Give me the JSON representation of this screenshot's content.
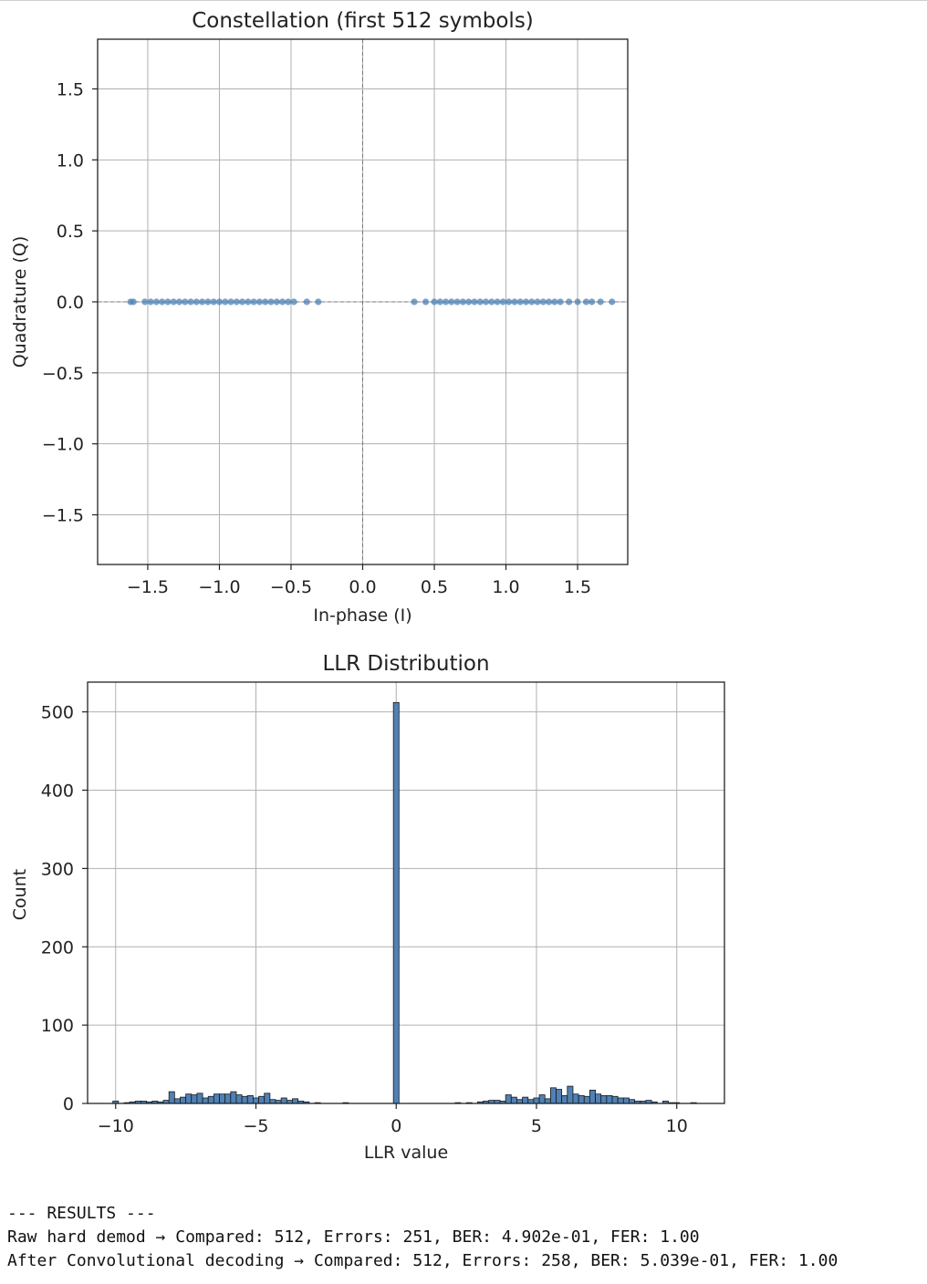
{
  "chart_data": [
    {
      "type": "scatter",
      "title": "Constellation (first 512 symbols)",
      "xlabel": "In-phase (I)",
      "ylabel": "Quadrature (Q)",
      "xlim": [
        -1.85,
        1.85
      ],
      "ylim": [
        -1.85,
        1.85
      ],
      "x_ticks": [
        -1.5,
        -1.0,
        -0.5,
        0.0,
        0.5,
        1.0,
        1.5
      ],
      "y_ticks": [
        -1.5,
        -1.0,
        -0.5,
        0.0,
        0.5,
        1.0,
        1.5
      ],
      "x_tick_labels": [
        "−1.5",
        "−1.0",
        "−0.5",
        "0.0",
        "0.5",
        "1.0",
        "1.5"
      ],
      "y_tick_labels": [
        "−1.5",
        "−1.0",
        "−0.5",
        "0.0",
        "0.5",
        "1.0",
        "1.5"
      ],
      "grid": true,
      "reference_lines": {
        "x": 0,
        "y": 0,
        "style": "dashed"
      },
      "marker_color": "#4f81b5",
      "points": [
        {
          "x": -1.62,
          "y": 0
        },
        {
          "x": -1.6,
          "y": 0
        },
        {
          "x": -1.52,
          "y": 0
        },
        {
          "x": -1.48,
          "y": 0
        },
        {
          "x": -1.44,
          "y": 0
        },
        {
          "x": -1.4,
          "y": 0
        },
        {
          "x": -1.36,
          "y": 0
        },
        {
          "x": -1.32,
          "y": 0
        },
        {
          "x": -1.28,
          "y": 0
        },
        {
          "x": -1.24,
          "y": 0
        },
        {
          "x": -1.2,
          "y": 0
        },
        {
          "x": -1.16,
          "y": 0
        },
        {
          "x": -1.12,
          "y": 0
        },
        {
          "x": -1.08,
          "y": 0
        },
        {
          "x": -1.04,
          "y": 0
        },
        {
          "x": -1.0,
          "y": 0
        },
        {
          "x": -0.96,
          "y": 0
        },
        {
          "x": -0.92,
          "y": 0
        },
        {
          "x": -0.88,
          "y": 0
        },
        {
          "x": -0.84,
          "y": 0
        },
        {
          "x": -0.8,
          "y": 0
        },
        {
          "x": -0.76,
          "y": 0
        },
        {
          "x": -0.72,
          "y": 0
        },
        {
          "x": -0.68,
          "y": 0
        },
        {
          "x": -0.64,
          "y": 0
        },
        {
          "x": -0.6,
          "y": 0
        },
        {
          "x": -0.56,
          "y": 0
        },
        {
          "x": -0.52,
          "y": 0
        },
        {
          "x": -0.48,
          "y": 0
        },
        {
          "x": -0.39,
          "y": 0
        },
        {
          "x": -0.31,
          "y": 0
        },
        {
          "x": 0.36,
          "y": 0
        },
        {
          "x": 0.44,
          "y": 0
        },
        {
          "x": 0.5,
          "y": 0
        },
        {
          "x": 0.54,
          "y": 0
        },
        {
          "x": 0.58,
          "y": 0
        },
        {
          "x": 0.62,
          "y": 0
        },
        {
          "x": 0.66,
          "y": 0
        },
        {
          "x": 0.7,
          "y": 0
        },
        {
          "x": 0.74,
          "y": 0
        },
        {
          "x": 0.78,
          "y": 0
        },
        {
          "x": 0.82,
          "y": 0
        },
        {
          "x": 0.86,
          "y": 0
        },
        {
          "x": 0.9,
          "y": 0
        },
        {
          "x": 0.94,
          "y": 0
        },
        {
          "x": 0.98,
          "y": 0
        },
        {
          "x": 1.02,
          "y": 0
        },
        {
          "x": 1.06,
          "y": 0
        },
        {
          "x": 1.1,
          "y": 0
        },
        {
          "x": 1.14,
          "y": 0
        },
        {
          "x": 1.18,
          "y": 0
        },
        {
          "x": 1.22,
          "y": 0
        },
        {
          "x": 1.26,
          "y": 0
        },
        {
          "x": 1.3,
          "y": 0
        },
        {
          "x": 1.34,
          "y": 0
        },
        {
          "x": 1.38,
          "y": 0
        },
        {
          "x": 1.44,
          "y": 0
        },
        {
          "x": 1.5,
          "y": 0
        },
        {
          "x": 1.56,
          "y": 0
        },
        {
          "x": 1.6,
          "y": 0
        },
        {
          "x": 1.66,
          "y": 0
        },
        {
          "x": 1.74,
          "y": 0
        }
      ]
    },
    {
      "type": "bar",
      "title": "LLR Distribution",
      "xlabel": "LLR value",
      "ylabel": "Count",
      "xlim": [
        -11.0,
        11.7
      ],
      "ylim": [
        0,
        538
      ],
      "x_ticks": [
        -10,
        -5,
        0,
        5,
        10
      ],
      "y_ticks": [
        0,
        100,
        200,
        300,
        400,
        500
      ],
      "x_tick_labels": [
        "−10",
        "−5",
        "0",
        "5",
        "10"
      ],
      "y_tick_labels": [
        "0",
        "100",
        "200",
        "300",
        "400",
        "500"
      ],
      "grid": true,
      "bar_color": "#4f81b5",
      "edge_color": "#1a1a1a",
      "bin_width": 0.2,
      "bins": [
        {
          "x": -10.0,
          "count": 3
        },
        {
          "x": -9.6,
          "count": 1
        },
        {
          "x": -9.4,
          "count": 2
        },
        {
          "x": -9.2,
          "count": 3
        },
        {
          "x": -9.0,
          "count": 3
        },
        {
          "x": -8.8,
          "count": 2
        },
        {
          "x": -8.6,
          "count": 3
        },
        {
          "x": -8.4,
          "count": 2
        },
        {
          "x": -8.2,
          "count": 4
        },
        {
          "x": -8.0,
          "count": 15
        },
        {
          "x": -7.8,
          "count": 6
        },
        {
          "x": -7.6,
          "count": 8
        },
        {
          "x": -7.4,
          "count": 12
        },
        {
          "x": -7.2,
          "count": 11
        },
        {
          "x": -7.0,
          "count": 13
        },
        {
          "x": -6.8,
          "count": 7
        },
        {
          "x": -6.6,
          "count": 9
        },
        {
          "x": -6.4,
          "count": 12
        },
        {
          "x": -6.2,
          "count": 12
        },
        {
          "x": -6.0,
          "count": 12
        },
        {
          "x": -5.8,
          "count": 15
        },
        {
          "x": -5.6,
          "count": 11
        },
        {
          "x": -5.4,
          "count": 9
        },
        {
          "x": -5.2,
          "count": 10
        },
        {
          "x": -5.0,
          "count": 7
        },
        {
          "x": -4.8,
          "count": 9
        },
        {
          "x": -4.6,
          "count": 13
        },
        {
          "x": -4.4,
          "count": 5
        },
        {
          "x": -4.2,
          "count": 4
        },
        {
          "x": -4.0,
          "count": 7
        },
        {
          "x": -3.8,
          "count": 4
        },
        {
          "x": -3.6,
          "count": 6
        },
        {
          "x": -3.4,
          "count": 3
        },
        {
          "x": -3.2,
          "count": 2
        },
        {
          "x": -2.8,
          "count": 1
        },
        {
          "x": -1.8,
          "count": 1
        },
        {
          "x": 0.0,
          "count": 512
        },
        {
          "x": 2.2,
          "count": 1
        },
        {
          "x": 2.6,
          "count": 1
        },
        {
          "x": 3.0,
          "count": 2
        },
        {
          "x": 3.2,
          "count": 3
        },
        {
          "x": 3.4,
          "count": 4
        },
        {
          "x": 3.6,
          "count": 4
        },
        {
          "x": 3.8,
          "count": 3
        },
        {
          "x": 4.0,
          "count": 11
        },
        {
          "x": 4.2,
          "count": 8
        },
        {
          "x": 4.4,
          "count": 5
        },
        {
          "x": 4.6,
          "count": 8
        },
        {
          "x": 4.8,
          "count": 5
        },
        {
          "x": 5.0,
          "count": 7
        },
        {
          "x": 5.2,
          "count": 11
        },
        {
          "x": 5.4,
          "count": 6
        },
        {
          "x": 5.6,
          "count": 20
        },
        {
          "x": 5.8,
          "count": 18
        },
        {
          "x": 6.0,
          "count": 10
        },
        {
          "x": 6.2,
          "count": 22
        },
        {
          "x": 6.4,
          "count": 12
        },
        {
          "x": 6.6,
          "count": 10
        },
        {
          "x": 6.8,
          "count": 9
        },
        {
          "x": 7.0,
          "count": 17
        },
        {
          "x": 7.2,
          "count": 12
        },
        {
          "x": 7.4,
          "count": 10
        },
        {
          "x": 7.6,
          "count": 10
        },
        {
          "x": 7.8,
          "count": 9
        },
        {
          "x": 8.0,
          "count": 7
        },
        {
          "x": 8.2,
          "count": 7
        },
        {
          "x": 8.4,
          "count": 5
        },
        {
          "x": 8.6,
          "count": 3
        },
        {
          "x": 8.8,
          "count": 3
        },
        {
          "x": 9.0,
          "count": 4
        },
        {
          "x": 9.2,
          "count": 2
        },
        {
          "x": 9.6,
          "count": 3
        },
        {
          "x": 9.8,
          "count": 1
        },
        {
          "x": 10.0,
          "count": 1
        },
        {
          "x": 10.6,
          "count": 1
        }
      ]
    }
  ],
  "console": {
    "lines": [
      "--- RESULTS ---",
      "Raw hard demod → Compared: 512, Errors: 251, BER: 4.902e-01, FER: 1.00",
      "After Convolutional decoding → Compared: 512, Errors: 258, BER: 5.039e-01, FER: 1.00"
    ]
  }
}
